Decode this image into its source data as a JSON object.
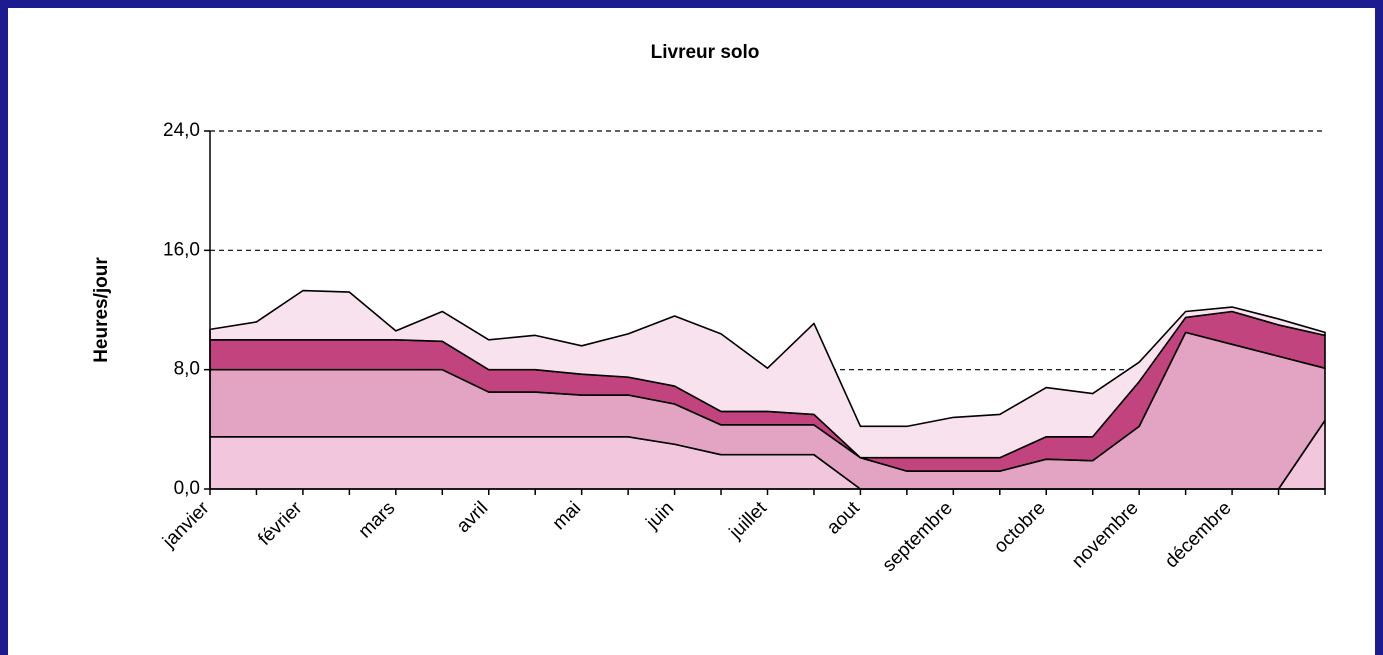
{
  "chart_data": {
    "type": "stacked_area",
    "title": "Livreur solo",
    "y_label": "Heures/jour",
    "categories": [
      "janvier",
      null,
      "février",
      null,
      "mars",
      null,
      "avril",
      null,
      "mai",
      null,
      "juin",
      null,
      "juillet",
      null,
      "aout",
      null,
      "septembre",
      null,
      "octobre",
      null,
      "novembre",
      null,
      "décembre",
      null,
      null
    ],
    "series": [
      {
        "color": "#f2c6dc",
        "values": [
          3.5,
          3.5,
          3.5,
          3.5,
          3.5,
          3.5,
          3.5,
          3.5,
          3.5,
          3.5,
          3.0,
          2.3,
          2.3,
          2.3,
          0,
          0,
          0,
          0,
          0,
          0,
          0,
          0,
          0,
          0,
          4.6
        ]
      },
      {
        "color": "#e3a3c3",
        "values": [
          4.5,
          4.5,
          4.5,
          4.5,
          4.5,
          4.5,
          3.0,
          3.0,
          2.8,
          2.8,
          2.7,
          2.0,
          2.0,
          2.0,
          2.1,
          1.2,
          1.2,
          1.2,
          2.0,
          1.9,
          4.2,
          10.5,
          9.7,
          8.9,
          3.5
        ]
      },
      {
        "color": "#c2447f",
        "values": [
          2.0,
          2.0,
          2.0,
          2.0,
          2.0,
          1.9,
          1.5,
          1.5,
          1.4,
          1.2,
          1.2,
          0.9,
          0.9,
          0.7,
          0,
          0.9,
          0.9,
          0.9,
          1.5,
          1.6,
          3.0,
          1.0,
          2.2,
          2.1,
          2.2
        ]
      },
      {
        "color": "#f8e2ee",
        "values": [
          0.7,
          1.2,
          3.3,
          3.2,
          0.6,
          2.0,
          2.0,
          2.3,
          1.9,
          2.9,
          4.7,
          5.2,
          2.9,
          6.1,
          2.1,
          2.1,
          2.7,
          2.9,
          3.3,
          2.9,
          1.3,
          0.4,
          0.3,
          0.4,
          0.2
        ]
      }
    ],
    "ylim": [
      0,
      24
    ],
    "yticks": [
      {
        "value": 0,
        "label": "0,0"
      },
      {
        "value": 8,
        "label": "8,0"
      },
      {
        "value": 16,
        "label": "16,0"
      },
      {
        "value": 24,
        "label": "24,0"
      }
    ],
    "grid": true
  }
}
